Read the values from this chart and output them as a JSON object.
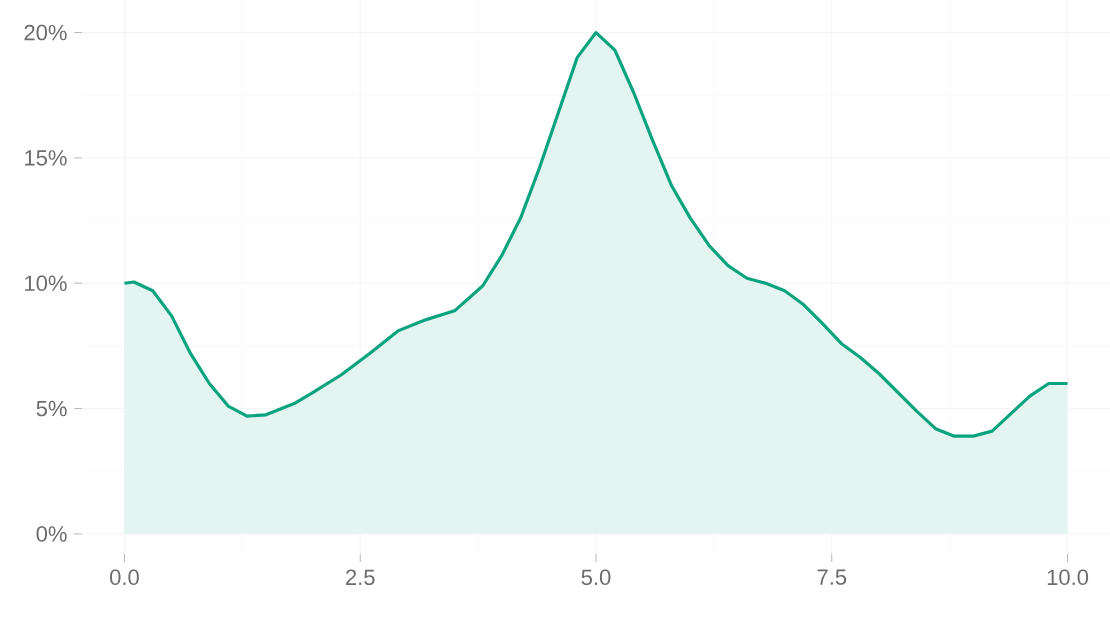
{
  "chart_data": {
    "type": "area",
    "color": "#0aa37f",
    "x": [
      0,
      0.1,
      0.3,
      0.5,
      0.7,
      0.9,
      1.1,
      1.3,
      1.5,
      1.8,
      2.0,
      2.3,
      2.6,
      2.9,
      3.2,
      3.5,
      3.8,
      4.0,
      4.2,
      4.4,
      4.6,
      4.8,
      5.0,
      5.2,
      5.4,
      5.6,
      5.8,
      6.0,
      6.2,
      6.4,
      6.6,
      6.8,
      7.0,
      7.2,
      7.4,
      7.6,
      7.8,
      8.0,
      8.2,
      8.4,
      8.6,
      8.8,
      9.0,
      9.2,
      9.4,
      9.6,
      9.8,
      10.0
    ],
    "values": [
      10.0,
      10.05,
      9.7,
      8.7,
      7.2,
      6.0,
      5.1,
      4.7,
      4.75,
      5.2,
      5.65,
      6.35,
      7.2,
      8.1,
      8.55,
      8.9,
      9.9,
      11.1,
      12.6,
      14.6,
      16.8,
      19.0,
      20.0,
      19.3,
      17.6,
      15.7,
      13.9,
      12.6,
      11.5,
      10.7,
      10.2,
      10.0,
      9.7,
      9.15,
      8.4,
      7.6,
      7.05,
      6.4,
      5.65,
      4.9,
      4.2,
      3.9,
      3.9,
      4.1,
      4.8,
      5.5,
      6.0,
      6.0
    ],
    "xlim": [
      -0.45,
      10.45
    ],
    "ylim": [
      -0.8,
      21.3
    ],
    "xticks": [
      {
        "value": 0,
        "label": "0.0"
      },
      {
        "value": 2.5,
        "label": "2.5"
      },
      {
        "value": 5,
        "label": "5.0"
      },
      {
        "value": 7.5,
        "label": "7.5"
      },
      {
        "value": 10,
        "label": "10.0"
      }
    ],
    "yticks": [
      {
        "value": 0,
        "label": "0%"
      },
      {
        "value": 5,
        "label": "5%"
      },
      {
        "value": 10,
        "label": "10%"
      },
      {
        "value": 15,
        "label": "15%"
      },
      {
        "value": 20,
        "label": "20%"
      }
    ],
    "grid": true
  }
}
